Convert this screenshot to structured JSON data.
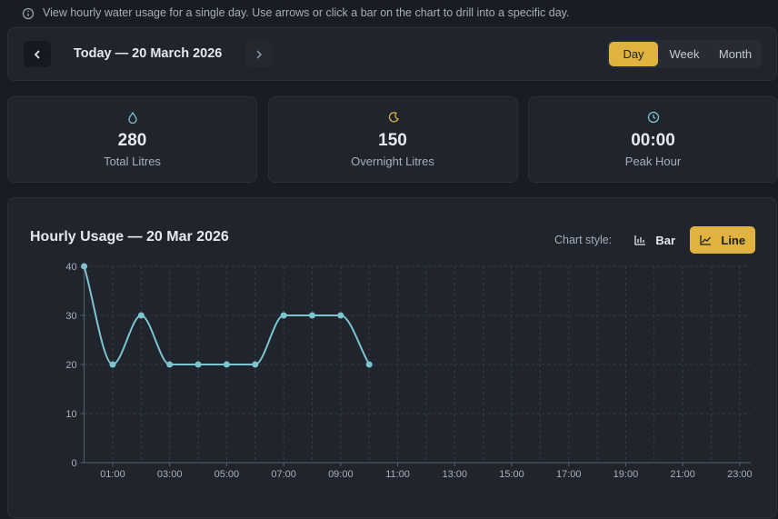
{
  "info": "View hourly water usage for a single day. Use arrows or click a bar on the chart to drill into a specific day.",
  "nav": {
    "date": "Today — 20 March 2026",
    "ranges": [
      "Day",
      "Week",
      "Month"
    ],
    "active_range": 0
  },
  "stats": [
    {
      "value": 280,
      "label": "Total Litres"
    },
    {
      "value": 150,
      "label": "Overnight Litres"
    },
    {
      "value": "00:00",
      "label": "Peak Hour"
    }
  ],
  "chart_style": {
    "label": "Chart style:",
    "options": [
      "Bar",
      "Line"
    ],
    "active": 1
  },
  "chart_data": {
    "type": "line",
    "title": "Hourly Usage — 20 Mar 2026",
    "categories": [
      null,
      "01:00",
      null,
      "03:00",
      null,
      "05:00",
      null,
      "07:00",
      null,
      "09:00",
      null,
      "11:00",
      null,
      "13:00",
      null,
      "15:00",
      null,
      "17:00",
      null,
      "19:00",
      null,
      "21:00",
      null,
      "23:00"
    ],
    "values": [
      40,
      20,
      30,
      20,
      20,
      20,
      20,
      30,
      30,
      30,
      20,
      null,
      null,
      null,
      null,
      null,
      null,
      null,
      null,
      null,
      null,
      null,
      null,
      null
    ],
    "color": "#7ec4cf",
    "ylim": [
      0,
      40
    ],
    "yticks": [
      0,
      10,
      20,
      30,
      40
    ],
    "grid": true
  }
}
